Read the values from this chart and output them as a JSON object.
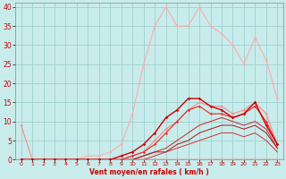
{
  "xlabel": "Vent moyen/en rafales ( km/h )",
  "background_color": "#c8ecec",
  "grid_color": "#a0d0d0",
  "xlim": [
    -0.5,
    23.5
  ],
  "ylim": [
    0,
    41
  ],
  "yticks": [
    0,
    5,
    10,
    15,
    20,
    25,
    30,
    35,
    40
  ],
  "xticks": [
    0,
    1,
    2,
    3,
    4,
    5,
    6,
    7,
    8,
    9,
    10,
    11,
    12,
    13,
    14,
    15,
    16,
    17,
    18,
    19,
    20,
    21,
    22,
    23
  ],
  "series": [
    {
      "x": [
        0,
        1,
        2,
        3,
        4,
        5,
        6,
        7,
        8,
        9,
        10,
        11,
        12,
        13,
        14,
        15,
        16,
        17,
        18,
        19,
        20,
        21,
        22,
        23
      ],
      "y": [
        9,
        0,
        0,
        0,
        0,
        0,
        0,
        0,
        0,
        0,
        0,
        0,
        0,
        0,
        0,
        0,
        0,
        0,
        0,
        0,
        0,
        0,
        0,
        0
      ],
      "color": "#ff8888",
      "lw": 0.8,
      "marker": "D",
      "ms": 1.5,
      "alpha": 1.0,
      "zorder": 3
    },
    {
      "x": [
        0,
        1,
        2,
        3,
        4,
        5,
        6,
        7,
        8,
        9,
        10,
        11,
        12,
        13,
        14,
        15,
        16,
        17,
        18,
        19,
        20,
        21,
        22,
        23
      ],
      "y": [
        0,
        0,
        0,
        0,
        0,
        0,
        1,
        1,
        2,
        4,
        12,
        25,
        35,
        40,
        35,
        35,
        40,
        35,
        33,
        30,
        25,
        32,
        26,
        16
      ],
      "color": "#ffaaaa",
      "lw": 0.8,
      "marker": "D",
      "ms": 1.5,
      "alpha": 1.0,
      "zorder": 2
    },
    {
      "x": [
        0,
        1,
        2,
        3,
        4,
        5,
        6,
        7,
        8,
        9,
        10,
        11,
        12,
        13,
        14,
        15,
        16,
        17,
        18,
        19,
        20,
        21,
        22,
        23
      ],
      "y": [
        0,
        0,
        0,
        0,
        0,
        0,
        0,
        0,
        0,
        0,
        1,
        2,
        5,
        8,
        10,
        13,
        15,
        14,
        14,
        12,
        13,
        15,
        12,
        4
      ],
      "color": "#ff8888",
      "lw": 0.8,
      "marker": "D",
      "ms": 1.5,
      "alpha": 1.0,
      "zorder": 4
    },
    {
      "x": [
        0,
        1,
        2,
        3,
        4,
        5,
        6,
        7,
        8,
        9,
        10,
        11,
        12,
        13,
        14,
        15,
        16,
        17,
        18,
        19,
        20,
        21,
        22,
        23
      ],
      "y": [
        0,
        0,
        0,
        0,
        0,
        0,
        0,
        0,
        0,
        1,
        2,
        4,
        7,
        11,
        13,
        16,
        16,
        14,
        13,
        11,
        12,
        15,
        9,
        4
      ],
      "color": "#cc0000",
      "lw": 1.0,
      "marker": "D",
      "ms": 1.8,
      "alpha": 1.0,
      "zorder": 5
    },
    {
      "x": [
        0,
        1,
        2,
        3,
        4,
        5,
        6,
        7,
        8,
        9,
        10,
        11,
        12,
        13,
        14,
        15,
        16,
        17,
        18,
        19,
        20,
        21,
        22,
        23
      ],
      "y": [
        0,
        0,
        0,
        0,
        0,
        0,
        0,
        0,
        0,
        0,
        1,
        2,
        4,
        7,
        10,
        13,
        14,
        12,
        12,
        11,
        12,
        14,
        10,
        4
      ],
      "color": "#ee2222",
      "lw": 0.8,
      "marker": "D",
      "ms": 1.5,
      "alpha": 1.0,
      "zorder": 4
    },
    {
      "x": [
        0,
        1,
        2,
        3,
        4,
        5,
        6,
        7,
        8,
        9,
        10,
        11,
        12,
        13,
        14,
        15,
        16,
        17,
        18,
        19,
        20,
        21,
        22,
        23
      ],
      "y": [
        0,
        0,
        0,
        0,
        0,
        0,
        0,
        0,
        0,
        0,
        0,
        1,
        2,
        3,
        5,
        7,
        9,
        10,
        11,
        10,
        9,
        10,
        8,
        3
      ],
      "color": "#cc2222",
      "lw": 0.7,
      "marker": null,
      "ms": 0,
      "alpha": 1.0,
      "zorder": 3
    },
    {
      "x": [
        0,
        1,
        2,
        3,
        4,
        5,
        6,
        7,
        8,
        9,
        10,
        11,
        12,
        13,
        14,
        15,
        16,
        17,
        18,
        19,
        20,
        21,
        22,
        23
      ],
      "y": [
        0,
        0,
        0,
        0,
        0,
        0,
        0,
        0,
        0,
        0,
        0,
        1,
        2,
        2,
        4,
        5,
        7,
        8,
        9,
        9,
        8,
        9,
        7,
        3
      ],
      "color": "#aa1111",
      "lw": 0.7,
      "marker": null,
      "ms": 0,
      "alpha": 1.0,
      "zorder": 3
    },
    {
      "x": [
        0,
        1,
        2,
        3,
        4,
        5,
        6,
        7,
        8,
        9,
        10,
        11,
        12,
        13,
        14,
        15,
        16,
        17,
        18,
        19,
        20,
        21,
        22,
        23
      ],
      "y": [
        0,
        0,
        0,
        0,
        0,
        0,
        0,
        0,
        0,
        0,
        0,
        0,
        1,
        2,
        3,
        4,
        5,
        6,
        7,
        7,
        6,
        7,
        5,
        2
      ],
      "color": "#cc3333",
      "lw": 0.7,
      "marker": null,
      "ms": 0,
      "alpha": 1.0,
      "zorder": 3
    }
  ]
}
